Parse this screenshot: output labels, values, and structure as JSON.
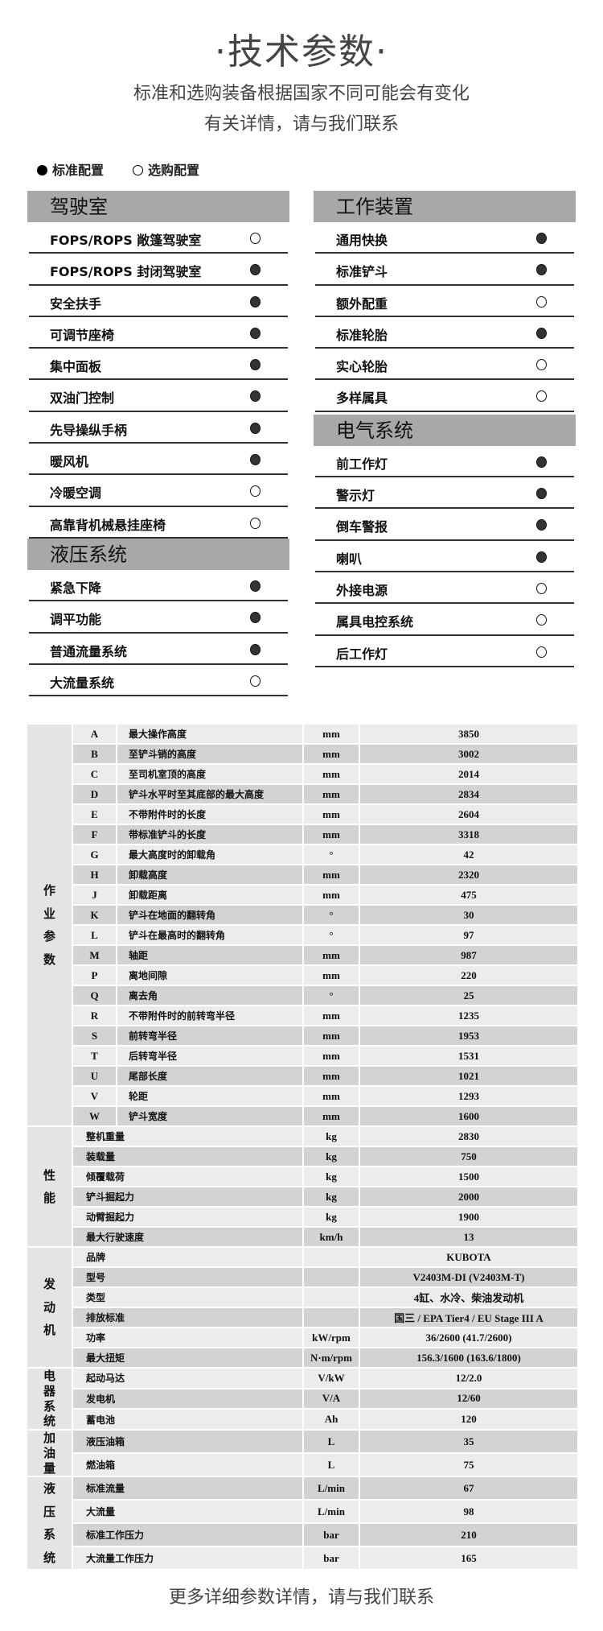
{
  "header": {
    "title": "·技术参数·",
    "subtitle_1": "标准和选购装备根据国家不同可能会有变化",
    "subtitle_2": "有关详情，请与我们联系"
  },
  "legend": {
    "standard": "标准配置",
    "optional": "选购配置"
  },
  "colors": {
    "section_header": "#a7a8aa",
    "row_light": "#ececec",
    "row_dark": "#d3d3d3"
  },
  "left_sections": [
    {
      "title": "驾驶室",
      "items": [
        {
          "label": "FOPS/ROPS 敞篷驾驶室",
          "state": "optional"
        },
        {
          "label": "FOPS/ROPS 封闭驾驶室",
          "state": "standard"
        },
        {
          "label": "安全扶手",
          "state": "standard"
        },
        {
          "label": "可调节座椅",
          "state": "standard"
        },
        {
          "label": "集中面板",
          "state": "standard"
        },
        {
          "label": "双油门控制",
          "state": "standard"
        },
        {
          "label": "先导操纵手柄",
          "state": "standard"
        },
        {
          "label": "暖风机",
          "state": "standard"
        },
        {
          "label": "冷暖空调",
          "state": "optional"
        },
        {
          "label": "高靠背机械悬挂座椅",
          "state": "optional"
        }
      ]
    },
    {
      "title": "液压系统",
      "items": [
        {
          "label": "紧急下降",
          "state": "standard"
        },
        {
          "label": "调平功能",
          "state": "standard"
        },
        {
          "label": "普通流量系统",
          "state": "standard"
        },
        {
          "label": "大流量系统",
          "state": "optional"
        }
      ]
    }
  ],
  "right_sections": [
    {
      "title": "工作装置",
      "items": [
        {
          "label": "通用快换",
          "state": "standard"
        },
        {
          "label": "标准铲斗",
          "state": "standard"
        },
        {
          "label": "额外配重",
          "state": "optional"
        },
        {
          "label": "标准轮胎",
          "state": "standard"
        },
        {
          "label": "实心轮胎",
          "state": "optional"
        },
        {
          "label": "多样属具",
          "state": "optional"
        }
      ]
    },
    {
      "title": "电气系统",
      "items": [
        {
          "label": "前工作灯",
          "state": "standard"
        },
        {
          "label": "警示灯",
          "state": "standard"
        },
        {
          "label": "倒车警报",
          "state": "standard"
        },
        {
          "label": "喇叭",
          "state": "standard"
        },
        {
          "label": "外接电源",
          "state": "optional"
        },
        {
          "label": "属具电控系统",
          "state": "optional"
        },
        {
          "label": "后工作灯",
          "state": "optional"
        }
      ]
    }
  ],
  "spec_groups": [
    {
      "name": "作业参数",
      "rows": [
        [
          "A",
          "最大操作高度",
          "mm",
          "3850"
        ],
        [
          "B",
          "至铲斗销的高度",
          "mm",
          "3002"
        ],
        [
          "C",
          "至司机室顶的高度",
          "mm",
          "2014"
        ],
        [
          "D",
          "铲斗水平时至其底部的最大高度",
          "mm",
          "2834"
        ],
        [
          "E",
          "不带附件时的长度",
          "mm",
          "2604"
        ],
        [
          "F",
          "带标准铲斗的长度",
          "mm",
          "3318"
        ],
        [
          "G",
          "最大高度时的卸载角",
          "°",
          "42"
        ],
        [
          "H",
          "卸载高度",
          "mm",
          "2320"
        ],
        [
          "J",
          "卸载距离",
          "mm",
          "475"
        ],
        [
          "K",
          "铲斗在地面的翻转角",
          "°",
          "30"
        ],
        [
          "L",
          "铲斗在最高时的翻转角",
          "°",
          "97"
        ],
        [
          "M",
          "轴距",
          "mm",
          "987"
        ],
        [
          "P",
          "离地间隙",
          "mm",
          "220"
        ],
        [
          "Q",
          "离去角",
          "°",
          "25"
        ],
        [
          "R",
          "不带附件时的前转弯半径",
          "mm",
          "1235"
        ],
        [
          "S",
          "前转弯半径",
          "mm",
          "1953"
        ],
        [
          "T",
          "后转弯半径",
          "mm",
          "1531"
        ],
        [
          "U",
          "尾部长度",
          "mm",
          "1021"
        ],
        [
          "V",
          "轮距",
          "mm",
          "1293"
        ],
        [
          "W",
          "铲斗宽度",
          "mm",
          "1600"
        ]
      ]
    },
    {
      "name": "性能",
      "rows": [
        [
          "",
          "整机重量",
          "kg",
          "2830"
        ],
        [
          "",
          "装载量",
          "kg",
          "750"
        ],
        [
          "",
          "倾覆载荷",
          "kg",
          "1500"
        ],
        [
          "",
          "铲斗掘起力",
          "kg",
          "2000"
        ],
        [
          "",
          "动臂掘起力",
          "kg",
          "1900"
        ],
        [
          "",
          "最大行驶速度",
          "km/h",
          "13"
        ]
      ]
    },
    {
      "name": "发动机",
      "rows": [
        [
          "",
          "品牌",
          "",
          "KUBOTA"
        ],
        [
          "",
          "型号",
          "",
          "V2403M-DI (V2403M-T)"
        ],
        [
          "",
          "类型",
          "",
          "4缸、水冷、柴油发动机"
        ],
        [
          "",
          "排放标准",
          "",
          "国三 / EPA Tier4 / EU Stage III A"
        ],
        [
          "",
          "功率",
          "kW/rpm",
          "36/2600 (41.7/2600)"
        ],
        [
          "",
          "最大扭矩",
          "N·m/rpm",
          "156.3/1600 (163.6/1800)"
        ]
      ]
    },
    {
      "name": "电器系统",
      "rows": [
        [
          "",
          "起动马达",
          "V/kW",
          "12/2.0"
        ],
        [
          "",
          "发电机",
          "V/A",
          "12/60"
        ],
        [
          "",
          "蓄电池",
          "Ah",
          "120"
        ]
      ]
    },
    {
      "name": "加油量",
      "rows": [
        [
          "",
          "液压油箱",
          "L",
          "35"
        ],
        [
          "",
          "燃油箱",
          "L",
          "75"
        ]
      ]
    },
    {
      "name": "液压系统",
      "rows": [
        [
          "",
          "标准流量",
          "L/min",
          "67"
        ],
        [
          "",
          "大流量",
          "L/min",
          "98"
        ],
        [
          "",
          "标准工作压力",
          "bar",
          "210"
        ],
        [
          "",
          "大流量工作压力",
          "bar",
          "165"
        ]
      ]
    }
  ],
  "footer": "更多详细参数详情，请与我们联系"
}
